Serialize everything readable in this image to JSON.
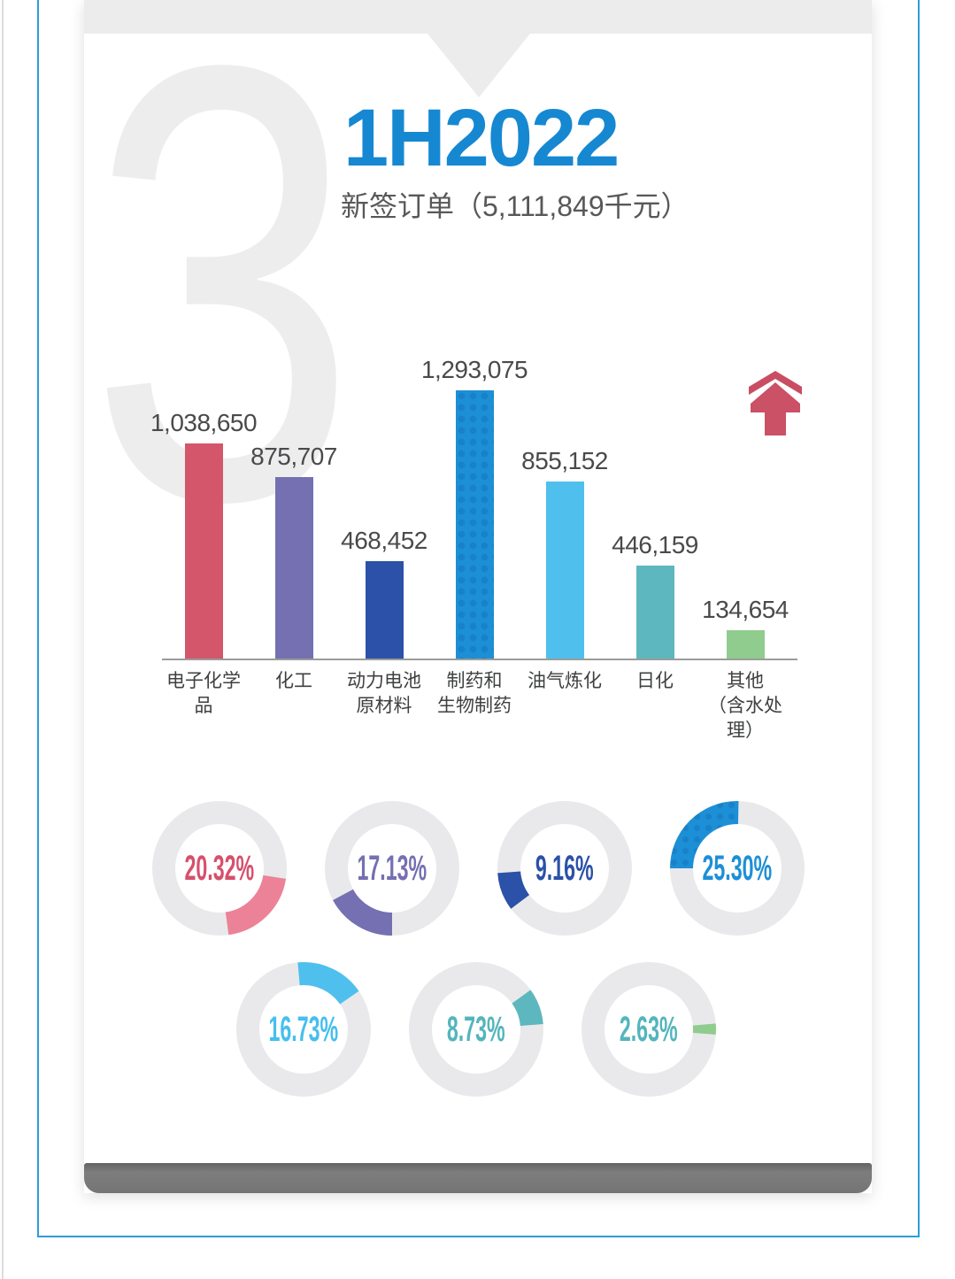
{
  "page": {
    "section_number": "3",
    "accent_color": "#1688d2",
    "frame_color": "#2f9cd9"
  },
  "chart_data": [
    {
      "type": "bar",
      "title": "1H2022",
      "subtitle": "新签订单（5,111,849千元）",
      "total_label": "5,111,849",
      "unit": "千元",
      "categories": [
        "电子化学品",
        "化工",
        "动力电池\n原材料",
        "制药和\n生物制药",
        "油气炼化",
        "日化",
        "其他\n（含水处理）"
      ],
      "values": [
        1038650,
        875707,
        468452,
        1293075,
        855152,
        446159,
        134654
      ],
      "value_labels": [
        "1,038,650",
        "875,707",
        "468,452",
        "1,293,075",
        "855,152",
        "446,159",
        "134,654"
      ],
      "colors": [
        "#d4566a",
        "#7470b2",
        "#2b51a8",
        "#1d8fd6",
        "#4fc0ee",
        "#5cb8be",
        "#90cc8e"
      ],
      "dotted": [
        false,
        false,
        false,
        true,
        false,
        false,
        false
      ],
      "ylim": [
        0,
        1293075
      ],
      "grid": false,
      "legend": "none",
      "trend_icon": "up-arrow",
      "trend_icon_color": "#ca5064"
    },
    {
      "type": "donut-set",
      "track_color": "#e9e9ec",
      "items": [
        {
          "category": "电子化学品",
          "label": "20.32%",
          "value": 20.32,
          "arc_color": "#ec8298",
          "text_color": "#d6506c",
          "start_angle": 99,
          "dotted": false
        },
        {
          "category": "化工",
          "label": "17.13%",
          "value": 17.13,
          "arc_color": "#7470b2",
          "text_color": "#7470b2",
          "start_angle": 180,
          "dotted": false
        },
        {
          "category": "动力电池原材料",
          "label": "9.16%",
          "value": 9.16,
          "arc_color": "#2b51a8",
          "text_color": "#2b51a8",
          "start_angle": 233,
          "dotted": false
        },
        {
          "category": "制药和生物制药",
          "label": "25.30%",
          "value": 25.3,
          "arc_color": "#1d8fd6",
          "text_color": "#1d8fd6",
          "start_angle": 270,
          "dotted": true
        },
        {
          "category": "油气炼化",
          "label": "16.73%",
          "value": 16.73,
          "arc_color": "#4fc0ee",
          "text_color": "#45bfee",
          "start_angle": -5,
          "dotted": false
        },
        {
          "category": "日化",
          "label": "8.73%",
          "value": 8.73,
          "arc_color": "#5cb8be",
          "text_color": "#53b5bc",
          "start_angle": 54,
          "dotted": false
        },
        {
          "category": "其他（含水处理）",
          "label": "2.63%",
          "value": 2.63,
          "arc_color": "#90cc8e",
          "text_color": "#53b5bc",
          "start_angle": 85,
          "dotted": false
        }
      ]
    }
  ]
}
